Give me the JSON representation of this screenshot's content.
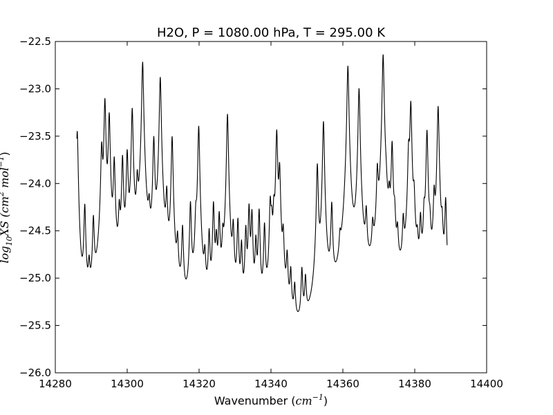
{
  "chart_data": {
    "type": "line",
    "title": "H2O, P = 1080.00 hPa, T = 295.00 K",
    "xlabel": {
      "text": "Wavenumber (",
      "unit": "cm",
      "exp": "−1",
      "close": ")"
    },
    "ylabel": {
      "text": "log",
      "sub": "10",
      "mid": "XS (",
      "unit": "cm",
      "exp": "2",
      "unit2": " mol",
      "exp2": "−1",
      "close": ")"
    },
    "xlim": [
      14280,
      14400
    ],
    "ylim": [
      -26.0,
      -22.5
    ],
    "xticks": [
      14280,
      14300,
      14320,
      14340,
      14360,
      14380,
      14400
    ],
    "yticks": [
      -26.0,
      -25.5,
      -25.0,
      -24.5,
      -24.0,
      -23.5,
      -23.0,
      -22.5
    ],
    "xtick_labels": [
      "14280",
      "14300",
      "14320",
      "14340",
      "14360",
      "14380",
      "14400"
    ],
    "ytick_labels": [
      "−26.0",
      "−25.5",
      "−25.0",
      "−24.5",
      "−24.0",
      "−23.5",
      "−23.0",
      "−22.5"
    ],
    "grid": false,
    "line_color": "#000000",
    "series": [
      {
        "name": "",
        "x_start": 14286.0,
        "x_end": 14389.0,
        "peaks": [
          [
            14286.1,
            -23.45
          ],
          [
            14288.2,
            -24.28
          ],
          [
            14289.4,
            -25.12
          ],
          [
            14290.6,
            -24.45
          ],
          [
            14292.9,
            -23.65
          ],
          [
            14293.8,
            -23.12
          ],
          [
            14295.0,
            -23.28
          ],
          [
            14296.4,
            -23.78
          ],
          [
            14297.8,
            -24.4
          ],
          [
            14298.7,
            -23.75
          ],
          [
            14300.0,
            -23.7
          ],
          [
            14301.4,
            -23.22
          ],
          [
            14302.8,
            -24.1
          ],
          [
            14304.3,
            -22.72
          ],
          [
            14306.1,
            -24.5
          ],
          [
            14307.4,
            -23.55
          ],
          [
            14309.2,
            -22.88
          ],
          [
            14311.0,
            -24.2
          ],
          [
            14312.5,
            -23.52
          ],
          [
            14314.0,
            -24.75
          ],
          [
            14315.4,
            -24.55
          ],
          [
            14317.6,
            -24.25
          ],
          [
            14319.1,
            -24.5
          ],
          [
            14319.9,
            -23.4
          ],
          [
            14321.6,
            -24.95
          ],
          [
            14322.8,
            -24.6
          ],
          [
            14324.0,
            -24.25
          ],
          [
            14324.8,
            -24.7
          ],
          [
            14325.6,
            -24.4
          ],
          [
            14326.6,
            -24.75
          ],
          [
            14327.9,
            -23.27
          ],
          [
            14329.5,
            -24.55
          ],
          [
            14330.8,
            -24.45
          ],
          [
            14331.8,
            -24.75
          ],
          [
            14333.0,
            -24.55
          ],
          [
            14333.9,
            -24.28
          ],
          [
            14334.7,
            -24.35
          ],
          [
            14335.8,
            -24.7
          ],
          [
            14336.7,
            -24.32
          ],
          [
            14338.2,
            -24.5
          ],
          [
            14339.8,
            -24.25
          ],
          [
            14340.2,
            -24.55
          ],
          [
            14340.8,
            -24.4
          ],
          [
            14341.6,
            -23.45
          ],
          [
            14342.4,
            -23.86
          ],
          [
            14343.4,
            -24.65
          ],
          [
            14344.5,
            -24.9
          ],
          [
            14345.5,
            -25.1
          ],
          [
            14346.6,
            -25.32
          ],
          [
            14348.6,
            -25.05
          ],
          [
            14349.6,
            -25.2
          ],
          [
            14352.9,
            -23.82
          ],
          [
            14354.6,
            -23.35
          ],
          [
            14356.9,
            -24.28
          ],
          [
            14359.2,
            -24.95
          ],
          [
            14361.4,
            -22.76
          ],
          [
            14364.5,
            -23.0
          ],
          [
            14366.5,
            -24.45
          ],
          [
            14368.3,
            -24.7
          ],
          [
            14369.6,
            -23.94
          ],
          [
            14371.2,
            -22.64
          ],
          [
            14372.0,
            -24.55
          ],
          [
            14372.9,
            -24.35
          ],
          [
            14373.7,
            -23.6
          ],
          [
            14374.4,
            -24.5
          ],
          [
            14375.2,
            -24.75
          ],
          [
            14376.8,
            -24.55
          ],
          [
            14378.3,
            -23.7
          ],
          [
            14378.9,
            -23.15
          ],
          [
            14379.8,
            -24.25
          ],
          [
            14380.7,
            -24.9
          ],
          [
            14381.6,
            -24.5
          ],
          [
            14382.6,
            -24.45
          ],
          [
            14383.4,
            -23.45
          ],
          [
            14384.2,
            -24.65
          ],
          [
            14385.4,
            -24.2
          ],
          [
            14386.5,
            -23.19
          ],
          [
            14387.6,
            -24.6
          ],
          [
            14388.6,
            -24.22
          ]
        ]
      }
    ]
  }
}
